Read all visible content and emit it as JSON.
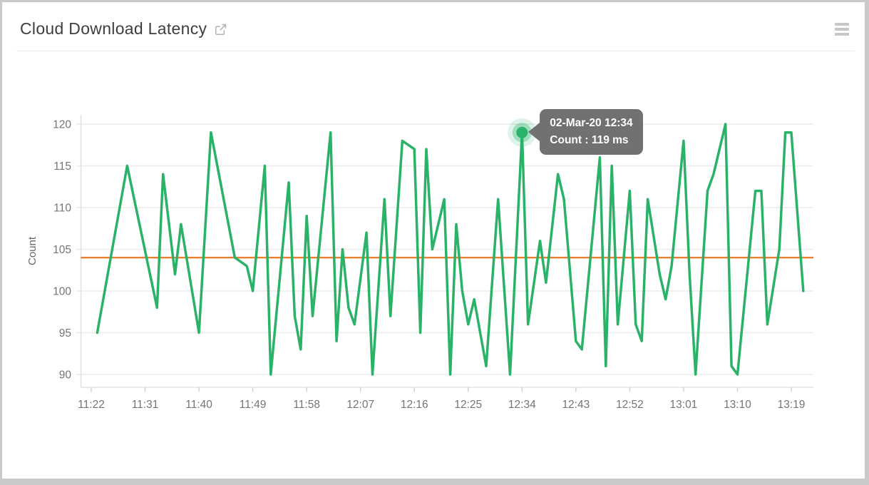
{
  "header": {
    "title": "Cloud Download Latency",
    "external_link_icon": "external-link",
    "menu_icon": "hamburger-menu"
  },
  "chart_data": {
    "type": "line",
    "title": "Cloud Download Latency",
    "xlabel": "",
    "ylabel": "Count",
    "ylim": [
      90,
      120
    ],
    "grid": "horizontal",
    "legend_position": "none",
    "y_ticks": [
      120,
      115,
      110,
      105,
      100,
      95,
      90
    ],
    "x_ticks": [
      "11:22",
      "11:31",
      "11:40",
      "11:49",
      "11:58",
      "12:07",
      "12:16",
      "12:25",
      "12:34",
      "12:43",
      "12:52",
      "13:01",
      "13:10",
      "13:19"
    ],
    "series": [
      {
        "name": "Count",
        "unit": "ms",
        "color": "#2bb269",
        "x": [
          "11:23",
          "11:28",
          "11:33",
          "11:34",
          "11:36",
          "11:37",
          "11:40",
          "11:42",
          "11:46",
          "11:48",
          "11:49",
          "11:51",
          "11:52",
          "11:55",
          "11:56",
          "11:57",
          "11:58",
          "11:59",
          "12:02",
          "12:03",
          "12:04",
          "12:05",
          "12:06",
          "12:08",
          "12:09",
          "12:11",
          "12:12",
          "12:14",
          "12:16",
          "12:17",
          "12:18",
          "12:19",
          "12:21",
          "12:22",
          "12:23",
          "12:24",
          "12:25",
          "12:26",
          "12:28",
          "12:30",
          "12:32",
          "12:34",
          "12:35",
          "12:37",
          "12:38",
          "12:40",
          "12:41",
          "12:43",
          "12:44",
          "12:47",
          "12:48",
          "12:49",
          "12:50",
          "12:52",
          "12:53",
          "12:54",
          "12:55",
          "12:57",
          "12:58",
          "12:59",
          "13:01",
          "13:02",
          "13:03",
          "13:05",
          "13:06",
          "13:08",
          "13:09",
          "13:10",
          "13:13",
          "13:14",
          "13:15",
          "13:17",
          "13:18",
          "13:19",
          "13:21"
        ],
        "values": [
          95,
          115,
          98,
          114,
          102,
          108,
          95,
          119,
          104,
          103,
          100,
          115,
          90,
          113,
          97,
          93,
          109,
          97,
          119,
          94,
          105,
          98,
          96,
          107,
          90,
          111,
          97,
          118,
          117,
          95,
          117,
          105,
          111,
          90,
          108,
          100,
          96,
          99,
          91,
          111,
          90,
          119,
          96,
          106,
          101,
          114,
          111,
          94,
          93,
          116,
          91,
          115,
          96,
          112,
          96,
          94,
          111,
          102,
          99,
          103,
          118,
          102,
          90,
          112,
          114,
          120,
          91,
          90,
          112,
          112,
          96,
          105,
          119,
          119,
          100
        ]
      }
    ],
    "threshold": {
      "value": 104,
      "color": "#e8802f"
    },
    "marker": {
      "x": "12:34",
      "value": 119,
      "color": "#2bb269"
    },
    "tooltip": {
      "line1": "02-Mar-20 12:34",
      "line2": "Count : 119 ms"
    }
  },
  "colors": {
    "card_bg": "#ffffff",
    "frame": "#c9c9c9",
    "gridline": "#ececec",
    "axis": "#e3e3e3",
    "tick": "#cfcfcf",
    "tick_text": "#757575",
    "tooltip_bg": "#717171",
    "title_text": "#3e3e3e"
  }
}
